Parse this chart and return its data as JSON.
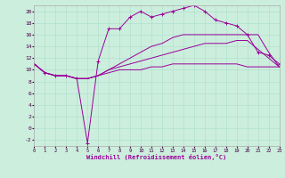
{
  "xlabel": "Windchill (Refroidissement éolien,°C)",
  "background_color": "#cceedd",
  "line_color": "#990099",
  "xlim": [
    0,
    23
  ],
  "ylim": [
    -3,
    21
  ],
  "xticks": [
    0,
    1,
    2,
    3,
    4,
    5,
    6,
    7,
    8,
    9,
    10,
    11,
    12,
    13,
    14,
    15,
    16,
    17,
    18,
    19,
    20,
    21,
    22,
    23
  ],
  "yticks": [
    -2,
    0,
    2,
    4,
    6,
    8,
    10,
    12,
    14,
    16,
    18,
    20
  ],
  "line1_x": [
    0,
    1,
    2,
    3,
    4,
    5,
    6,
    7,
    8,
    9,
    10,
    11,
    12,
    13,
    14,
    15,
    16,
    17,
    18,
    19,
    20,
    21,
    22,
    23
  ],
  "line1_y": [
    11,
    9.5,
    9,
    9,
    8.5,
    8.5,
    9,
    9.5,
    10,
    10,
    10,
    10.5,
    10.5,
    11,
    11,
    11,
    11,
    11,
    11,
    11,
    10.5,
    10.5,
    10.5,
    10.5
  ],
  "line2_x": [
    0,
    1,
    2,
    3,
    4,
    5,
    6,
    7,
    8,
    9,
    10,
    11,
    12,
    13,
    14,
    15,
    16,
    17,
    18,
    19,
    20,
    21,
    22,
    23
  ],
  "line2_y": [
    11,
    9.5,
    9,
    9,
    8.5,
    8.5,
    9,
    10,
    10.5,
    11,
    11.5,
    12,
    12.5,
    13,
    13.5,
    14,
    14.5,
    14.5,
    14.5,
    15,
    15,
    13.5,
    12,
    10.5
  ],
  "line3_x": [
    0,
    1,
    2,
    3,
    4,
    5,
    6,
    7,
    8,
    9,
    10,
    11,
    12,
    13,
    14,
    15,
    16,
    17,
    18,
    19,
    20,
    21,
    22,
    23
  ],
  "line3_y": [
    11,
    9.5,
    9,
    9,
    8.5,
    8.5,
    9,
    10,
    11,
    12,
    13,
    14,
    14.5,
    15.5,
    16,
    16,
    16,
    16,
    16,
    16,
    16,
    16,
    13,
    10.5
  ],
  "line4_x": [
    0,
    1,
    2,
    3,
    4,
    5,
    6,
    7,
    8,
    9,
    10,
    11,
    12,
    13,
    14,
    15,
    16,
    17,
    18,
    19,
    20,
    21,
    22,
    23
  ],
  "line4_y": [
    11,
    9.5,
    9,
    9,
    8.5,
    -2.5,
    11.5,
    17,
    17,
    19,
    20,
    19,
    19.5,
    20,
    20.5,
    21,
    20,
    18.5,
    18,
    17.5,
    16,
    13,
    12.5,
    11
  ]
}
